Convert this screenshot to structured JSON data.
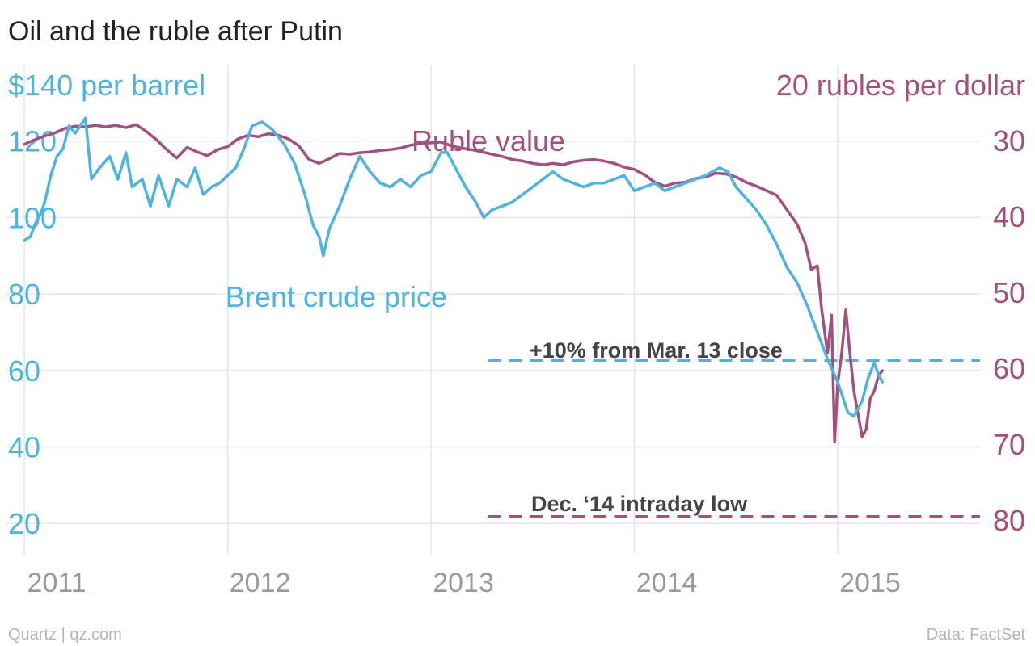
{
  "colors": {
    "oil": "#4fb3e0",
    "ruble": "#a4507f",
    "grid": "#e6e6e6",
    "axis_x_text": "#9a9a9a",
    "annotation_text": "#444444"
  },
  "header": {
    "title": "Oil and the ruble after Putin"
  },
  "footer": {
    "credit": "Quartz | qz.com",
    "source": "Data: FactSet"
  },
  "chart_data": {
    "type": "line",
    "title": "Oil and the ruble after Putin",
    "left_axis": {
      "label": "$140 per barrel",
      "range": [
        12,
        140
      ],
      "ticks": [
        20,
        40,
        60,
        80,
        100,
        120
      ],
      "tick_labels": [
        "20",
        "40",
        "60",
        "80",
        "100",
        "120"
      ],
      "top_label_value": 140
    },
    "right_axis": {
      "label": "20 rubles per dollar",
      "range": [
        84.44,
        20
      ],
      "inverted": true,
      "ticks": [
        30,
        40,
        50,
        60,
        70,
        80
      ],
      "tick_labels": [
        "30",
        "40",
        "50",
        "60",
        "70",
        "80"
      ],
      "top_label_value": 20
    },
    "x_axis": {
      "range": [
        2010.92,
        2015.7
      ],
      "ticks": [
        2011,
        2012,
        2013,
        2014,
        2015
      ],
      "tick_labels": [
        "2011",
        "2012",
        "2013",
        "2014",
        "2015"
      ]
    },
    "grid": true,
    "series": [
      {
        "name": "Brent crude price",
        "axis": "left",
        "points": [
          [
            2011.0,
            94
          ],
          [
            2011.03,
            95
          ],
          [
            2011.05,
            98
          ],
          [
            2011.08,
            101
          ],
          [
            2011.1,
            104
          ],
          [
            2011.13,
            111
          ],
          [
            2011.16,
            116
          ],
          [
            2011.19,
            118
          ],
          [
            2011.22,
            124
          ],
          [
            2011.25,
            122
          ],
          [
            2011.3,
            126
          ],
          [
            2011.33,
            110
          ],
          [
            2011.37,
            113
          ],
          [
            2011.42,
            116
          ],
          [
            2011.46,
            110
          ],
          [
            2011.5,
            117
          ],
          [
            2011.53,
            108
          ],
          [
            2011.58,
            110
          ],
          [
            2011.62,
            103
          ],
          [
            2011.66,
            111
          ],
          [
            2011.71,
            103
          ],
          [
            2011.75,
            110
          ],
          [
            2011.8,
            108
          ],
          [
            2011.84,
            113
          ],
          [
            2011.88,
            106
          ],
          [
            2011.92,
            108
          ],
          [
            2011.96,
            109
          ],
          [
            2012.0,
            111
          ],
          [
            2012.04,
            113
          ],
          [
            2012.08,
            118
          ],
          [
            2012.12,
            124
          ],
          [
            2012.17,
            125
          ],
          [
            2012.22,
            123
          ],
          [
            2012.28,
            119
          ],
          [
            2012.33,
            114
          ],
          [
            2012.38,
            106
          ],
          [
            2012.42,
            98
          ],
          [
            2012.45,
            95
          ],
          [
            2012.47,
            90
          ],
          [
            2012.5,
            97
          ],
          [
            2012.55,
            103
          ],
          [
            2012.6,
            110
          ],
          [
            2012.65,
            116
          ],
          [
            2012.7,
            112
          ],
          [
            2012.75,
            109
          ],
          [
            2012.8,
            108
          ],
          [
            2012.85,
            110
          ],
          [
            2012.9,
            108
          ],
          [
            2012.95,
            111
          ],
          [
            2013.0,
            112
          ],
          [
            2013.05,
            117
          ],
          [
            2013.08,
            117
          ],
          [
            2013.12,
            113
          ],
          [
            2013.17,
            108
          ],
          [
            2013.22,
            104
          ],
          [
            2013.26,
            100
          ],
          [
            2013.3,
            102
          ],
          [
            2013.35,
            103
          ],
          [
            2013.4,
            104
          ],
          [
            2013.45,
            106
          ],
          [
            2013.5,
            108
          ],
          [
            2013.55,
            110
          ],
          [
            2013.6,
            112
          ],
          [
            2013.65,
            110
          ],
          [
            2013.7,
            109
          ],
          [
            2013.75,
            108
          ],
          [
            2013.8,
            109
          ],
          [
            2013.85,
            109
          ],
          [
            2013.9,
            110
          ],
          [
            2013.95,
            111
          ],
          [
            2014.0,
            107
          ],
          [
            2014.05,
            108
          ],
          [
            2014.1,
            109
          ],
          [
            2014.15,
            107
          ],
          [
            2014.2,
            108
          ],
          [
            2014.25,
            109
          ],
          [
            2014.3,
            110
          ],
          [
            2014.35,
            111
          ],
          [
            2014.42,
            113
          ],
          [
            2014.46,
            112
          ],
          [
            2014.5,
            108
          ],
          [
            2014.55,
            105
          ],
          [
            2014.6,
            102
          ],
          [
            2014.65,
            98
          ],
          [
            2014.7,
            93
          ],
          [
            2014.75,
            87
          ],
          [
            2014.8,
            83
          ],
          [
            2014.85,
            77
          ],
          [
            2014.9,
            70
          ],
          [
            2014.95,
            63
          ],
          [
            2015.0,
            57
          ],
          [
            2015.05,
            49
          ],
          [
            2015.08,
            48
          ],
          [
            2015.12,
            52
          ],
          [
            2015.15,
            58
          ],
          [
            2015.18,
            62
          ],
          [
            2015.2,
            59
          ],
          [
            2015.22,
            57
          ]
        ]
      },
      {
        "name": "Ruble value",
        "axis": "right",
        "points": [
          [
            2011.0,
            30.5
          ],
          [
            2011.05,
            29.9
          ],
          [
            2011.1,
            29.4
          ],
          [
            2011.15,
            29.0
          ],
          [
            2011.2,
            28.4
          ],
          [
            2011.25,
            28.1
          ],
          [
            2011.3,
            28.2
          ],
          [
            2011.35,
            28.0
          ],
          [
            2011.4,
            28.2
          ],
          [
            2011.45,
            28.0
          ],
          [
            2011.5,
            28.3
          ],
          [
            2011.55,
            27.9
          ],
          [
            2011.6,
            28.8
          ],
          [
            2011.65,
            29.9
          ],
          [
            2011.7,
            31.2
          ],
          [
            2011.75,
            32.3
          ],
          [
            2011.8,
            30.9
          ],
          [
            2011.85,
            31.5
          ],
          [
            2011.9,
            32.0
          ],
          [
            2011.95,
            31.2
          ],
          [
            2012.0,
            30.8
          ],
          [
            2012.05,
            29.8
          ],
          [
            2012.1,
            29.3
          ],
          [
            2012.15,
            29.5
          ],
          [
            2012.2,
            29.1
          ],
          [
            2012.25,
            29.3
          ],
          [
            2012.3,
            29.8
          ],
          [
            2012.35,
            30.7
          ],
          [
            2012.4,
            32.5
          ],
          [
            2012.45,
            33.0
          ],
          [
            2012.5,
            32.4
          ],
          [
            2012.55,
            31.7
          ],
          [
            2012.6,
            31.8
          ],
          [
            2012.65,
            31.6
          ],
          [
            2012.7,
            31.5
          ],
          [
            2012.75,
            31.3
          ],
          [
            2012.8,
            31.2
          ],
          [
            2012.85,
            31.0
          ],
          [
            2012.9,
            30.6
          ],
          [
            2012.95,
            30.4
          ],
          [
            2013.0,
            30.3
          ],
          [
            2013.05,
            30.2
          ],
          [
            2013.1,
            30.7
          ],
          [
            2013.15,
            31.0
          ],
          [
            2013.2,
            31.2
          ],
          [
            2013.25,
            31.5
          ],
          [
            2013.3,
            31.8
          ],
          [
            2013.35,
            32.1
          ],
          [
            2013.4,
            32.5
          ],
          [
            2013.45,
            32.7
          ],
          [
            2013.5,
            33.0
          ],
          [
            2013.55,
            33.2
          ],
          [
            2013.6,
            33.0
          ],
          [
            2013.65,
            33.2
          ],
          [
            2013.7,
            32.8
          ],
          [
            2013.75,
            32.6
          ],
          [
            2013.8,
            32.5
          ],
          [
            2013.85,
            32.7
          ],
          [
            2013.9,
            33.0
          ],
          [
            2013.95,
            33.5
          ],
          [
            2014.0,
            33.8
          ],
          [
            2014.05,
            34.5
          ],
          [
            2014.1,
            35.5
          ],
          [
            2014.15,
            36.0
          ],
          [
            2014.2,
            35.6
          ],
          [
            2014.25,
            35.5
          ],
          [
            2014.3,
            35.0
          ],
          [
            2014.35,
            34.8
          ],
          [
            2014.4,
            34.3
          ],
          [
            2014.45,
            34.4
          ],
          [
            2014.5,
            34.8
          ],
          [
            2014.55,
            35.5
          ],
          [
            2014.6,
            36.0
          ],
          [
            2014.65,
            36.6
          ],
          [
            2014.7,
            37.2
          ],
          [
            2014.75,
            39.1
          ],
          [
            2014.8,
            41.0
          ],
          [
            2014.84,
            43.5
          ],
          [
            2014.87,
            47.0
          ],
          [
            2014.9,
            46.5
          ],
          [
            2014.92,
            52.0
          ],
          [
            2014.95,
            58.0
          ],
          [
            2014.97,
            53.0
          ],
          [
            2014.985,
            69.7
          ],
          [
            2015.0,
            62.0
          ],
          [
            2015.02,
            58.0
          ],
          [
            2015.04,
            52.3
          ],
          [
            2015.06,
            58.0
          ],
          [
            2015.08,
            63.0
          ],
          [
            2015.1,
            66.0
          ],
          [
            2015.12,
            69.0
          ],
          [
            2015.14,
            68.0
          ],
          [
            2015.16,
            64.0
          ],
          [
            2015.18,
            63.0
          ],
          [
            2015.2,
            61.0
          ],
          [
            2015.22,
            60.3
          ]
        ]
      }
    ],
    "series_labels": {
      "oil": "Brent crude price",
      "ruble": "Ruble value"
    },
    "reference_lines": [
      {
        "label": "+10% from Mar. 13 close",
        "axis": "left",
        "value": 62.6,
        "x_start": 2013.28,
        "color_key": "oil"
      },
      {
        "label": "Dec. ‘14 intraday low",
        "axis": "right",
        "value": 79.5,
        "x_start": 2013.28,
        "color_key": "ruble"
      }
    ]
  }
}
